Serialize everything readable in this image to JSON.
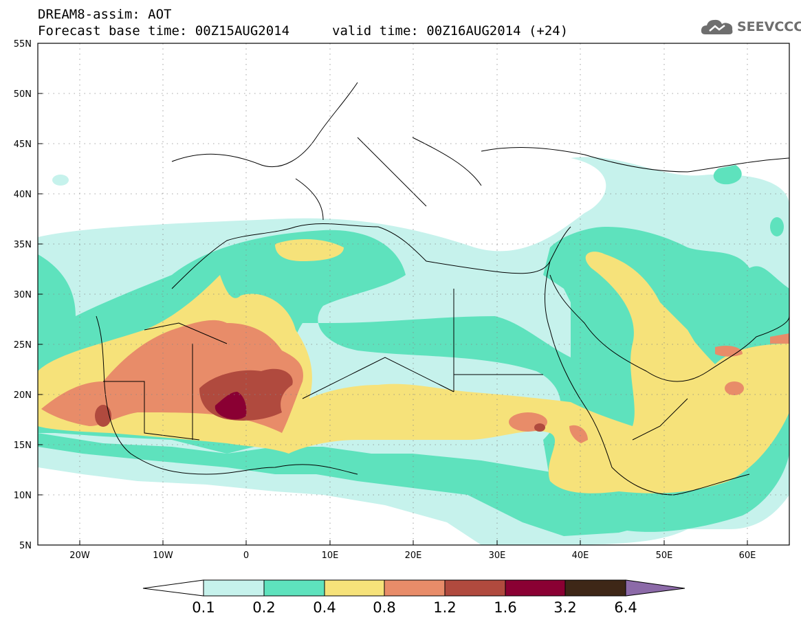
{
  "header": {
    "line1": "DREAM8-assim: AOT",
    "base_time": "Forecast base time: 00Z15AUG2014",
    "valid_time": "valid time: 00Z16AUG2014 (+24)"
  },
  "logo": {
    "text": "SEEVCCC",
    "icon": "cloud-logo-icon",
    "color": "#6e6e6e"
  },
  "map": {
    "lat_range": [
      5,
      55
    ],
    "lon_range": [
      -25,
      65
    ],
    "lat_ticks": [
      "5N",
      "10N",
      "15N",
      "20N",
      "25N",
      "30N",
      "35N",
      "40N",
      "45N",
      "50N",
      "55N"
    ],
    "lon_ticks": [
      "20W",
      "10W",
      "0",
      "10E",
      "20E",
      "30E",
      "40E",
      "50E",
      "60E"
    ],
    "grid": "dotted",
    "variable": "AOT"
  },
  "colorbar": {
    "labels": [
      "0.1",
      "0.2",
      "0.4",
      "0.8",
      "1.2",
      "1.6",
      "3.2",
      "6.4"
    ],
    "colors": [
      "#ffffff",
      "#c6f2ec",
      "#5ee2bd",
      "#f6e27a",
      "#e88c69",
      "#b04a3e",
      "#8a0033",
      "#3e2717",
      "#8c6aa8"
    ]
  }
}
